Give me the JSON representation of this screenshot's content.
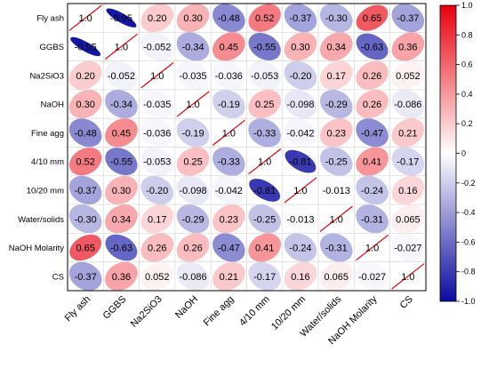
{
  "chart_data": {
    "type": "heatmap",
    "subtype": "correlation-ellipse-matrix",
    "title": "",
    "variables": [
      "Fly ash",
      "GGBS",
      "Na2SiO3",
      "NaOH",
      "Fine agg",
      "4/10 mm",
      "10/20 mm",
      "Water/solids",
      "NaOH Molarity",
      "CS"
    ],
    "matrix": [
      [
        1.0,
        -0.95,
        0.2,
        0.3,
        -0.48,
        0.52,
        -0.37,
        -0.3,
        0.65,
        -0.37
      ],
      [
        -0.95,
        1.0,
        -0.052,
        -0.34,
        0.45,
        -0.55,
        0.3,
        0.34,
        -0.63,
        0.36
      ],
      [
        0.2,
        -0.052,
        1.0,
        -0.035,
        -0.036,
        -0.053,
        -0.2,
        0.17,
        0.26,
        0.052
      ],
      [
        0.3,
        -0.34,
        -0.035,
        1.0,
        -0.19,
        0.25,
        -0.098,
        -0.29,
        0.26,
        -0.086
      ],
      [
        -0.48,
        0.45,
        -0.036,
        -0.19,
        1.0,
        -0.33,
        -0.042,
        0.23,
        -0.47,
        0.21
      ],
      [
        0.52,
        -0.55,
        -0.053,
        0.25,
        -0.33,
        1.0,
        -0.81,
        -0.25,
        0.41,
        -0.17
      ],
      [
        -0.37,
        0.3,
        -0.2,
        -0.098,
        -0.042,
        -0.81,
        1.0,
        -0.013,
        -0.24,
        0.16
      ],
      [
        -0.3,
        0.34,
        0.17,
        -0.29,
        0.23,
        -0.25,
        -0.013,
        1.0,
        -0.31,
        0.065
      ],
      [
        0.65,
        -0.63,
        0.26,
        0.26,
        -0.47,
        0.41,
        -0.24,
        -0.31,
        1.0,
        -0.027
      ],
      [
        -0.37,
        0.36,
        0.052,
        -0.086,
        0.21,
        -0.17,
        0.16,
        0.065,
        -0.027,
        1.0
      ]
    ],
    "labels": [
      [
        "1.0",
        "-0.95",
        "0.20",
        "0.30",
        "-0.48",
        "0.52",
        "-0.37",
        "-0.30",
        "0.65",
        "-0.37"
      ],
      [
        "-0.95",
        "1.0",
        "-0.052",
        "-0.34",
        "0.45",
        "-0.55",
        "0.30",
        "0.34",
        "-0.63",
        "0.36"
      ],
      [
        "0.20",
        "-0.052",
        "1.0",
        "-0.035",
        "-0.036",
        "-0.053",
        "-0.20",
        "0.17",
        "0.26",
        "0.052"
      ],
      [
        "0.30",
        "-0.34",
        "-0.035",
        "1.0",
        "-0.19",
        "0.25",
        "-0.098",
        "-0.29",
        "0.26",
        "-0.086"
      ],
      [
        "-0.48",
        "0.45",
        "-0.036",
        "-0.19",
        "1.0",
        "-0.33",
        "-0.042",
        "0.23",
        "-0.47",
        "0.21"
      ],
      [
        "0.52",
        "-0.55",
        "-0.053",
        "0.25",
        "-0.33",
        "1.0",
        "-0.81",
        "-0.25",
        "0.41",
        "-0.17"
      ],
      [
        "-0.37",
        "0.30",
        "-0.20",
        "-0.098",
        "-0.042",
        "-0.81",
        "1.0",
        "-0.013",
        "-0.24",
        "0.16"
      ],
      [
        "-0.30",
        "0.34",
        "0.17",
        "-0.29",
        "0.23",
        "-0.25",
        "-0.013",
        "1.0",
        "-0.31",
        "0.065"
      ],
      [
        "0.65",
        "-0.63",
        "0.26",
        "0.26",
        "-0.47",
        "0.41",
        "-0.24",
        "-0.31",
        "1.0",
        "-0.027"
      ],
      [
        "-0.37",
        "0.36",
        "0.052",
        "-0.086",
        "0.21",
        "-0.17",
        "0.16",
        "0.065",
        "-0.027",
        "1.0"
      ]
    ],
    "colorbar": {
      "range": [
        -1.0,
        1.0
      ],
      "ticks": [
        "1.0",
        "0.8",
        "0.6",
        "0.4",
        "0.2",
        "0",
        "-0.2",
        "-0.4",
        "-0.6",
        "-0.8",
        "-1.0"
      ],
      "colors": {
        "negative": "#0a0aa0",
        "zero": "#ffffff",
        "positive": "#e8000c"
      },
      "placement": "right"
    },
    "diagonal_line_color": "#e8000c",
    "grid": true
  }
}
